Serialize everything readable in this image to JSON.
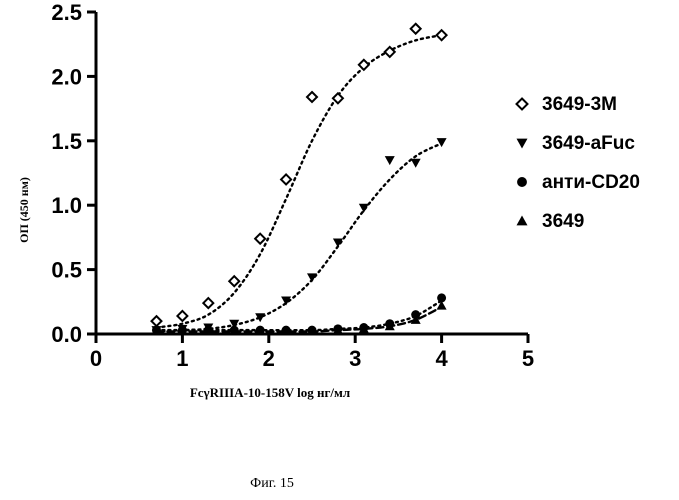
{
  "chart_data": {
    "type": "scatter",
    "xlabel": "FcγRIIIA-10-158V log нг/мл",
    "ylabel": "ОП (450 нм)",
    "xlim": [
      0,
      5
    ],
    "ylim": [
      0,
      2.5
    ],
    "xticks": [
      "0",
      "1",
      "2",
      "3",
      "4",
      "5"
    ],
    "yticks": [
      "0.0",
      "0.5",
      "1.0",
      "1.5",
      "2.0",
      "2.5"
    ],
    "legend_position": "right",
    "series": [
      {
        "name": "3649-3M",
        "marker": "diamond-open",
        "curve": "dotted",
        "x": [
          0.7,
          1.0,
          1.3,
          1.6,
          1.9,
          2.2,
          2.5,
          2.8,
          3.1,
          3.4,
          3.7,
          4.0
        ],
        "y": [
          0.1,
          0.14,
          0.24,
          0.41,
          0.74,
          1.2,
          1.84,
          1.83,
          2.09,
          2.19,
          2.37,
          2.32
        ],
        "fit": [
          [
            0.7,
            0.05
          ],
          [
            1.0,
            0.08
          ],
          [
            1.3,
            0.15
          ],
          [
            1.6,
            0.32
          ],
          [
            1.9,
            0.62
          ],
          [
            2.2,
            1.05
          ],
          [
            2.5,
            1.5
          ],
          [
            2.8,
            1.85
          ],
          [
            3.1,
            2.07
          ],
          [
            3.4,
            2.2
          ],
          [
            3.7,
            2.28
          ],
          [
            4.0,
            2.32
          ]
        ]
      },
      {
        "name": "3649-aFuc",
        "marker": "triangle-down",
        "curve": "dotted",
        "x": [
          0.7,
          1.0,
          1.3,
          1.6,
          1.9,
          2.2,
          2.5,
          2.8,
          3.1,
          3.4,
          3.7,
          4.0
        ],
        "y": [
          0.03,
          0.04,
          0.05,
          0.08,
          0.13,
          0.26,
          0.44,
          0.71,
          0.98,
          1.35,
          1.33,
          1.49
        ],
        "fit": [
          [
            0.7,
            0.02
          ],
          [
            1.0,
            0.03
          ],
          [
            1.3,
            0.04
          ],
          [
            1.6,
            0.07
          ],
          [
            1.9,
            0.13
          ],
          [
            2.2,
            0.24
          ],
          [
            2.5,
            0.42
          ],
          [
            2.8,
            0.68
          ],
          [
            3.1,
            0.96
          ],
          [
            3.4,
            1.2
          ],
          [
            3.7,
            1.38
          ],
          [
            4.0,
            1.48
          ]
        ]
      },
      {
        "name": "анти-CD20",
        "marker": "circle-filled",
        "curve": "dotted",
        "x": [
          0.7,
          1.0,
          1.3,
          1.6,
          1.9,
          2.2,
          2.5,
          2.8,
          3.1,
          3.4,
          3.7,
          4.0
        ],
        "y": [
          0.03,
          0.03,
          0.03,
          0.03,
          0.03,
          0.03,
          0.03,
          0.04,
          0.05,
          0.08,
          0.15,
          0.28
        ],
        "fit": [
          [
            0.7,
            0.03
          ],
          [
            1.3,
            0.03
          ],
          [
            1.9,
            0.03
          ],
          [
            2.5,
            0.03
          ],
          [
            2.8,
            0.04
          ],
          [
            3.1,
            0.05
          ],
          [
            3.4,
            0.08
          ],
          [
            3.7,
            0.14
          ],
          [
            4.0,
            0.26
          ]
        ]
      },
      {
        "name": "3649",
        "marker": "triangle-up",
        "curve": "dashed",
        "x": [
          0.7,
          1.0,
          1.3,
          1.6,
          1.9,
          2.2,
          2.5,
          2.8,
          3.1,
          3.4,
          3.7,
          4.0
        ],
        "y": [
          0.02,
          0.02,
          0.02,
          0.02,
          0.02,
          0.02,
          0.02,
          0.03,
          0.04,
          0.06,
          0.11,
          0.22
        ],
        "fit": [
          [
            0.7,
            0.02
          ],
          [
            1.3,
            0.02
          ],
          [
            1.9,
            0.02
          ],
          [
            2.5,
            0.02
          ],
          [
            2.8,
            0.03
          ],
          [
            3.1,
            0.04
          ],
          [
            3.4,
            0.06
          ],
          [
            3.7,
            0.11
          ],
          [
            4.0,
            0.21
          ]
        ]
      }
    ]
  },
  "caption": "Фиг. 15"
}
